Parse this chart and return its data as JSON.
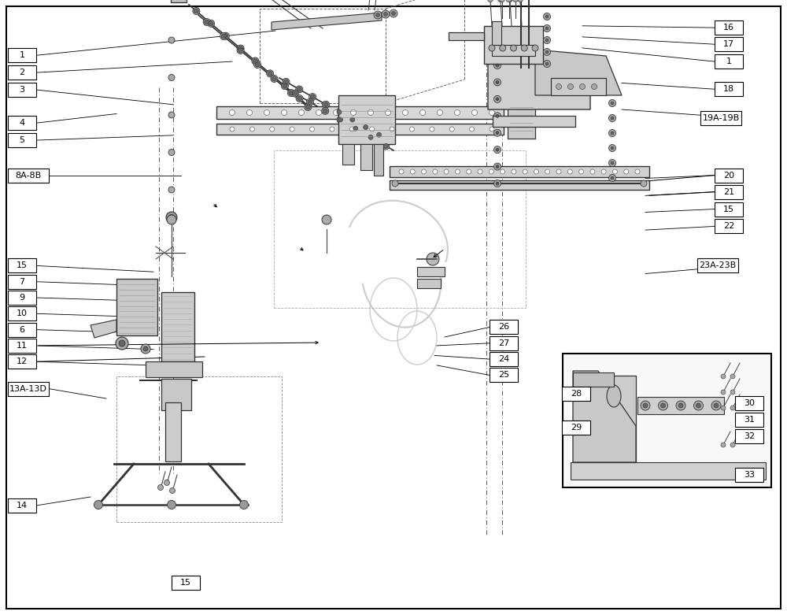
{
  "bg_color": "#ffffff",
  "border_color": "#000000",
  "label_color": "#000000",
  "line_color": "#000000",
  "part_color": "#cccccc",
  "part_edge": "#333333",
  "label_boxes_left": [
    {
      "label": "1",
      "bx": 0.01,
      "by": 0.91
    },
    {
      "label": "2",
      "bx": 0.01,
      "by": 0.882
    },
    {
      "label": "3",
      "bx": 0.01,
      "by": 0.854
    },
    {
      "label": "4",
      "bx": 0.01,
      "by": 0.8
    },
    {
      "label": "5",
      "bx": 0.01,
      "by": 0.772
    },
    {
      "label": "8A-8B",
      "bx": 0.01,
      "by": 0.715
    },
    {
      "label": "15",
      "bx": 0.01,
      "by": 0.568
    },
    {
      "label": "7",
      "bx": 0.01,
      "by": 0.542
    },
    {
      "label": "9",
      "bx": 0.01,
      "by": 0.516
    },
    {
      "label": "10",
      "bx": 0.01,
      "by": 0.49
    },
    {
      "label": "6",
      "bx": 0.01,
      "by": 0.464
    },
    {
      "label": "11",
      "bx": 0.01,
      "by": 0.438
    },
    {
      "label": "12",
      "bx": 0.01,
      "by": 0.412
    },
    {
      "label": "13A-13D",
      "bx": 0.01,
      "by": 0.368
    },
    {
      "label": "14",
      "bx": 0.01,
      "by": 0.178
    }
  ],
  "label_boxes_right": [
    {
      "label": "16",
      "bx": 0.908,
      "by": 0.955
    },
    {
      "label": "17",
      "bx": 0.908,
      "by": 0.928
    },
    {
      "label": "1",
      "bx": 0.908,
      "by": 0.9
    },
    {
      "label": "18",
      "bx": 0.908,
      "by": 0.855
    },
    {
      "label": "19A-19B",
      "bx": 0.89,
      "by": 0.808
    },
    {
      "label": "20",
      "bx": 0.908,
      "by": 0.715
    },
    {
      "label": "21",
      "bx": 0.908,
      "by": 0.688
    },
    {
      "label": "15",
      "bx": 0.908,
      "by": 0.66
    },
    {
      "label": "22",
      "bx": 0.908,
      "by": 0.632
    },
    {
      "label": "23A-23B",
      "bx": 0.886,
      "by": 0.568
    }
  ],
  "label_boxes_center": [
    {
      "label": "26",
      "bx": 0.622,
      "by": 0.468
    },
    {
      "label": "27",
      "bx": 0.622,
      "by": 0.442
    },
    {
      "label": "24",
      "bx": 0.622,
      "by": 0.416
    },
    {
      "label": "25",
      "bx": 0.622,
      "by": 0.39
    },
    {
      "label": "15",
      "bx": 0.218,
      "by": 0.052
    }
  ],
  "label_boxes_inset": [
    {
      "label": "28",
      "bx": 0.714,
      "by": 0.36
    },
    {
      "label": "29",
      "bx": 0.714,
      "by": 0.305
    },
    {
      "label": "30",
      "bx": 0.934,
      "by": 0.345
    },
    {
      "label": "31",
      "bx": 0.934,
      "by": 0.318
    },
    {
      "label": "32",
      "bx": 0.934,
      "by": 0.291
    },
    {
      "label": "33",
      "bx": 0.934,
      "by": 0.228
    }
  ]
}
